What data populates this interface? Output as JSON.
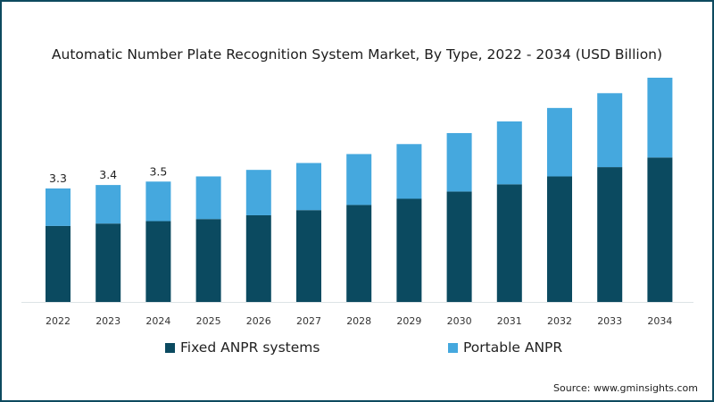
{
  "chart_data": {
    "type": "bar",
    "stacked": true,
    "title": "Automatic Number Plate Recognition System Market, By Type, 2022 - 2034 (USD Billion)",
    "xlabel": "",
    "ylabel": "",
    "ylim": [
      0,
      6.6
    ],
    "grid": false,
    "legend_position": "bottom",
    "categories": [
      "2022",
      "2023",
      "2024",
      "2025",
      "2026",
      "2027",
      "2028",
      "2029",
      "2030",
      "2031",
      "2032",
      "2033",
      "2034"
    ],
    "series": [
      {
        "name": "Fixed ANPR systems",
        "color": "#0b4a60",
        "values": [
          2.21,
          2.28,
          2.35,
          2.41,
          2.52,
          2.67,
          2.82,
          3.0,
          3.21,
          3.42,
          3.65,
          3.92,
          4.2
        ]
      },
      {
        "name": "Portable ANPR",
        "color": "#45a8de",
        "values": [
          1.09,
          1.12,
          1.15,
          1.24,
          1.32,
          1.37,
          1.48,
          1.59,
          1.7,
          1.83,
          1.99,
          2.15,
          2.32
        ]
      }
    ],
    "data_labels": [
      {
        "category": "2022",
        "text": "3.3"
      },
      {
        "category": "2023",
        "text": "3.4"
      },
      {
        "category": "2024",
        "text": "3.5"
      }
    ]
  },
  "source": "Source: www.gminsights.com"
}
